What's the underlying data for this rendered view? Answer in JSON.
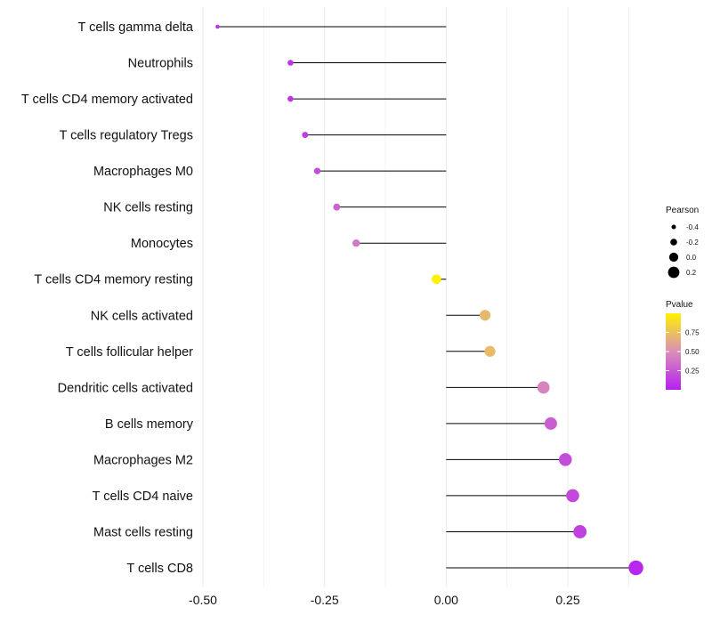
{
  "chart_data": {
    "type": "lollipop",
    "title": "",
    "xlabel": "",
    "ylabel": "",
    "xlim": [
      -0.5,
      0.4
    ],
    "x_ticks": [
      -0.5,
      -0.25,
      0.0,
      0.25
    ],
    "x_tick_labels": [
      "-0.50",
      "-0.25",
      "0.00",
      "0.25"
    ],
    "baseline": 0.0,
    "grid": "vertical",
    "categories": [
      "T cells gamma delta",
      "Neutrophils",
      "T cells CD4 memory activated",
      "T cells regulatory  Tregs ",
      "Macrophages M0",
      "NK cells resting",
      "Monocytes",
      "T cells CD4 memory resting",
      "NK cells activated",
      "T cells follicular helper",
      "Dendritic cells activated",
      "B cells memory",
      "Macrophages M2",
      "T cells CD4 naive",
      "Mast cells resting",
      "T cells CD8"
    ],
    "values": [
      -0.47,
      -0.32,
      -0.32,
      -0.29,
      -0.265,
      -0.225,
      -0.185,
      -0.02,
      0.08,
      0.09,
      0.2,
      0.215,
      0.245,
      0.26,
      0.275,
      0.39
    ],
    "pvalues": [
      0.08,
      0.1,
      0.1,
      0.13,
      0.2,
      0.3,
      0.4,
      1.0,
      0.7,
      0.72,
      0.45,
      0.28,
      0.2,
      0.18,
      0.15,
      0.03
    ],
    "size_legend": {
      "title": "Pearson",
      "values": [
        -0.4,
        -0.2,
        0.0,
        0.2
      ],
      "labels": [
        "-0.4",
        "-0.2",
        "0.0",
        "0.2"
      ]
    },
    "color_legend": {
      "title": "Pvalue",
      "range": [
        0.0,
        1.0
      ],
      "ticks": [
        0.25,
        0.5,
        0.75
      ],
      "tick_labels": [
        "0.25",
        "0.50",
        "0.75"
      ],
      "low_color": "#B620F0",
      "mid_color": "#D98FB8",
      "high_color": "#FFF200"
    },
    "line_color": "#000000",
    "grid_color": "#EBEBEB"
  }
}
